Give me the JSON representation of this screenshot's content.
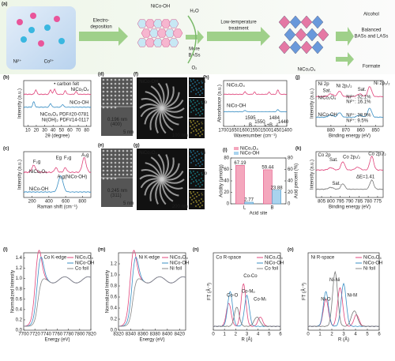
{
  "figure_a": {
    "label": "(a)",
    "ion1": "Ni²⁺",
    "ion2": "Co²⁺",
    "step1": [
      "Electro-",
      "deposition"
    ],
    "product1": "NiCo-OH",
    "h2o": "H₂O",
    "more_bass": [
      "More",
      "BASs"
    ],
    "o2": "O₂",
    "step2": [
      "Low-temperature",
      "treatment"
    ],
    "product2": "NiCo₂O₄",
    "alcohol": "Alcohol",
    "balanced": [
      "Balanced",
      "BASs and LASs"
    ],
    "formate": "Formate"
  },
  "panels": [
    {
      "label": "(b)",
      "xlabel": "2θ (degree)",
      "ylabel": "Intensity (a.u.)",
      "xlim": [
        5,
        85
      ],
      "xticks": [
        10,
        20,
        30,
        40,
        50,
        60,
        70,
        80
      ],
      "texts": [
        "• carbon felt",
        "NiCo₂O₄",
        "NiCo-OH",
        "NiCo₂O₄ PDF#20-0781",
        "Ni(OH)₂ PDF#14-0117"
      ]
    },
    {
      "label": "(c)",
      "xlabel": "Raman shift (cm⁻¹)",
      "ylabel": "Intensity (a.u.)",
      "xlim": [
        100,
        900
      ],
      "xticks": [
        200,
        400,
        600,
        800
      ],
      "texts": [
        "F₂g",
        "Eg",
        "F₂g",
        "A₁g",
        "A₁g(NiCo-OH)",
        "NiCo₂O₄",
        "NiCo-OH"
      ]
    },
    {
      "label": "(d)",
      "texts": [
        "0.196 nm",
        "(400)",
        "5 nm"
      ]
    },
    {
      "label": "(e)",
      "texts": [
        "0.245 nm",
        "(311)",
        "5 nm"
      ]
    },
    {
      "label": "(f)",
      "texts": [
        "NiCo-OH",
        "Ni",
        "Co",
        "O",
        "100 nm"
      ]
    },
    {
      "label": "(g)",
      "texts": [
        "NiCo₂O₄",
        "Ni",
        "Co",
        "O",
        "200 nm"
      ]
    },
    {
      "label": "(h)",
      "xlabel": "Wavenumber (cm⁻¹)",
      "ylabel": "Absorbance (a.u.)",
      "xlim": [
        1700,
        1400
      ],
      "xticks": [
        1700,
        1650,
        1600,
        1550,
        1500,
        1450,
        1400
      ],
      "texts": [
        "NiCo₂O₄",
        "NiCo-OH",
        "1595",
        "1550",
        "1484",
        "1440",
        "B",
        "L+B",
        "L"
      ]
    },
    {
      "label": "(j)",
      "xlabel": "Binding energy (eV)",
      "ylabel": "Intensity (a.u.)",
      "xlim": [
        890,
        845
      ],
      "xticks": [
        880,
        870,
        860,
        850
      ],
      "texts": [
        "Ni 2p",
        "Sat.",
        "Ni 2p₁/₂",
        "Sat.",
        "Ni 2p₃/₂",
        "NiCo₂O₄",
        "Ni³⁺: 32.1%",
        "Ni²⁺: 16.1%",
        "NiCo-OH",
        "Ni³⁺: 38.9%",
        "Ni²⁺: 9.5%"
      ]
    },
    {
      "label": "(k)",
      "xlabel": "Binding energy (eV)",
      "ylabel": "Intensity (a.u.)",
      "xlim": [
        808,
        772
      ],
      "xticks": [
        805,
        800,
        795,
        790,
        785,
        780,
        775
      ],
      "texts": [
        "Co 2p",
        "Sat.",
        "Co 2p₁/₂",
        "Co 2p₃/₂",
        "ΔE=1.41",
        "Sat."
      ]
    },
    {
      "label": "(l)",
      "xlabel": "Energy (eV)",
      "ylabel": "Normalized Intensity",
      "xlim": [
        7700,
        7820
      ],
      "xticks": [
        7700,
        7720,
        7740,
        7760,
        7780,
        7800,
        7820
      ],
      "ylim": [
        0,
        1.5
      ],
      "yticks": [
        {
          "value": 0,
          "label": "0.0"
        },
        0.2,
        0.4,
        0.6,
        0.8,
        {
          "value": 1,
          "label": "1.0"
        },
        1.2,
        1.4
      ],
      "texts": [
        "Co K-edge"
      ],
      "legend": [
        {
          "name": "NiCo₂O₄",
          "color": "#e0457b"
        },
        {
          "name": "NiCo-OH",
          "color": "#3a8fc4"
        },
        {
          "name": "Co foil",
          "color": "#888888"
        }
      ]
    },
    {
      "label": "(m)",
      "xlabel": "Energy (eV)",
      "ylabel": "Normalized Intensity",
      "xlim": [
        8320,
        8430
      ],
      "xticks": [
        8320,
        8340,
        8360,
        8380,
        8400,
        8420
      ],
      "ylim": [
        0,
        1.4
      ],
      "yticks": [
        {
          "value": 0,
          "label": "0.0"
        },
        0.2,
        0.4,
        0.6,
        0.8,
        {
          "value": 1,
          "label": "1.0"
        },
        1.2
      ],
      "texts": [
        "Ni K-edge"
      ],
      "legend": [
        {
          "name": "NiCo₂O₄",
          "color": "#e0457b"
        },
        {
          "name": "NiCo-OH",
          "color": "#3a8fc4"
        },
        {
          "name": "Ni foil",
          "color": "#888888"
        }
      ]
    },
    {
      "label": "(n)",
      "xlabel": "R (Å)",
      "ylabel": "FT (Å⁻³)",
      "xlim": [
        0,
        6
      ],
      "xticks": [
        0,
        1,
        2,
        3,
        4,
        5,
        6
      ],
      "texts": [
        "Co R-space",
        "Co-Co",
        "Co-O",
        "Co-Mₒ",
        "Co-Mₜ"
      ],
      "legend": [
        {
          "name": "NiCo₂O₄",
          "color": "#e0457b"
        },
        {
          "name": "NiCo-OH",
          "color": "#3a8fc4"
        },
        {
          "name": "Co foil",
          "color": "#888888"
        }
      ]
    },
    {
      "label": "(o)",
      "xlabel": "R (Å)",
      "ylabel": "FT (Å⁻³)",
      "xlim": [
        0,
        6
      ],
      "xticks": [
        0,
        1,
        2,
        3,
        4,
        5,
        6
      ],
      "texts": [
        "Ni R-space",
        "Ni-Ni",
        "Ni-O",
        "Ni-M"
      ],
      "legend": [
        {
          "name": "NiCo₂O₄",
          "color": "#e0457b"
        },
        {
          "name": "NiCo-OH",
          "color": "#3a8fc4"
        },
        {
          "name": "Ni foil",
          "color": "#888888"
        }
      ]
    }
  ],
  "chart_data": {
    "type": "bar",
    "label": "(i)",
    "xlabel": "Acid site",
    "ylabel": "Acidity (μmol/g)",
    "y2label": "Acid percent (%)",
    "categories": [
      "L",
      "B"
    ],
    "series": [
      {
        "name": "NiCo₂O₄",
        "color": "#f4a7bd",
        "values": [
          67.19,
          59.44
        ]
      },
      {
        "name": "NiCo-OH",
        "color": "#a9d3ee",
        "values": [
          2.77,
          23.88
        ]
      }
    ],
    "ylim": [
      0,
      80
    ],
    "yticks": [
      0,
      20,
      40,
      60,
      80
    ],
    "y2lim": [
      0,
      80
    ],
    "y2ticks": [
      0,
      20,
      40,
      60,
      80
    ]
  }
}
